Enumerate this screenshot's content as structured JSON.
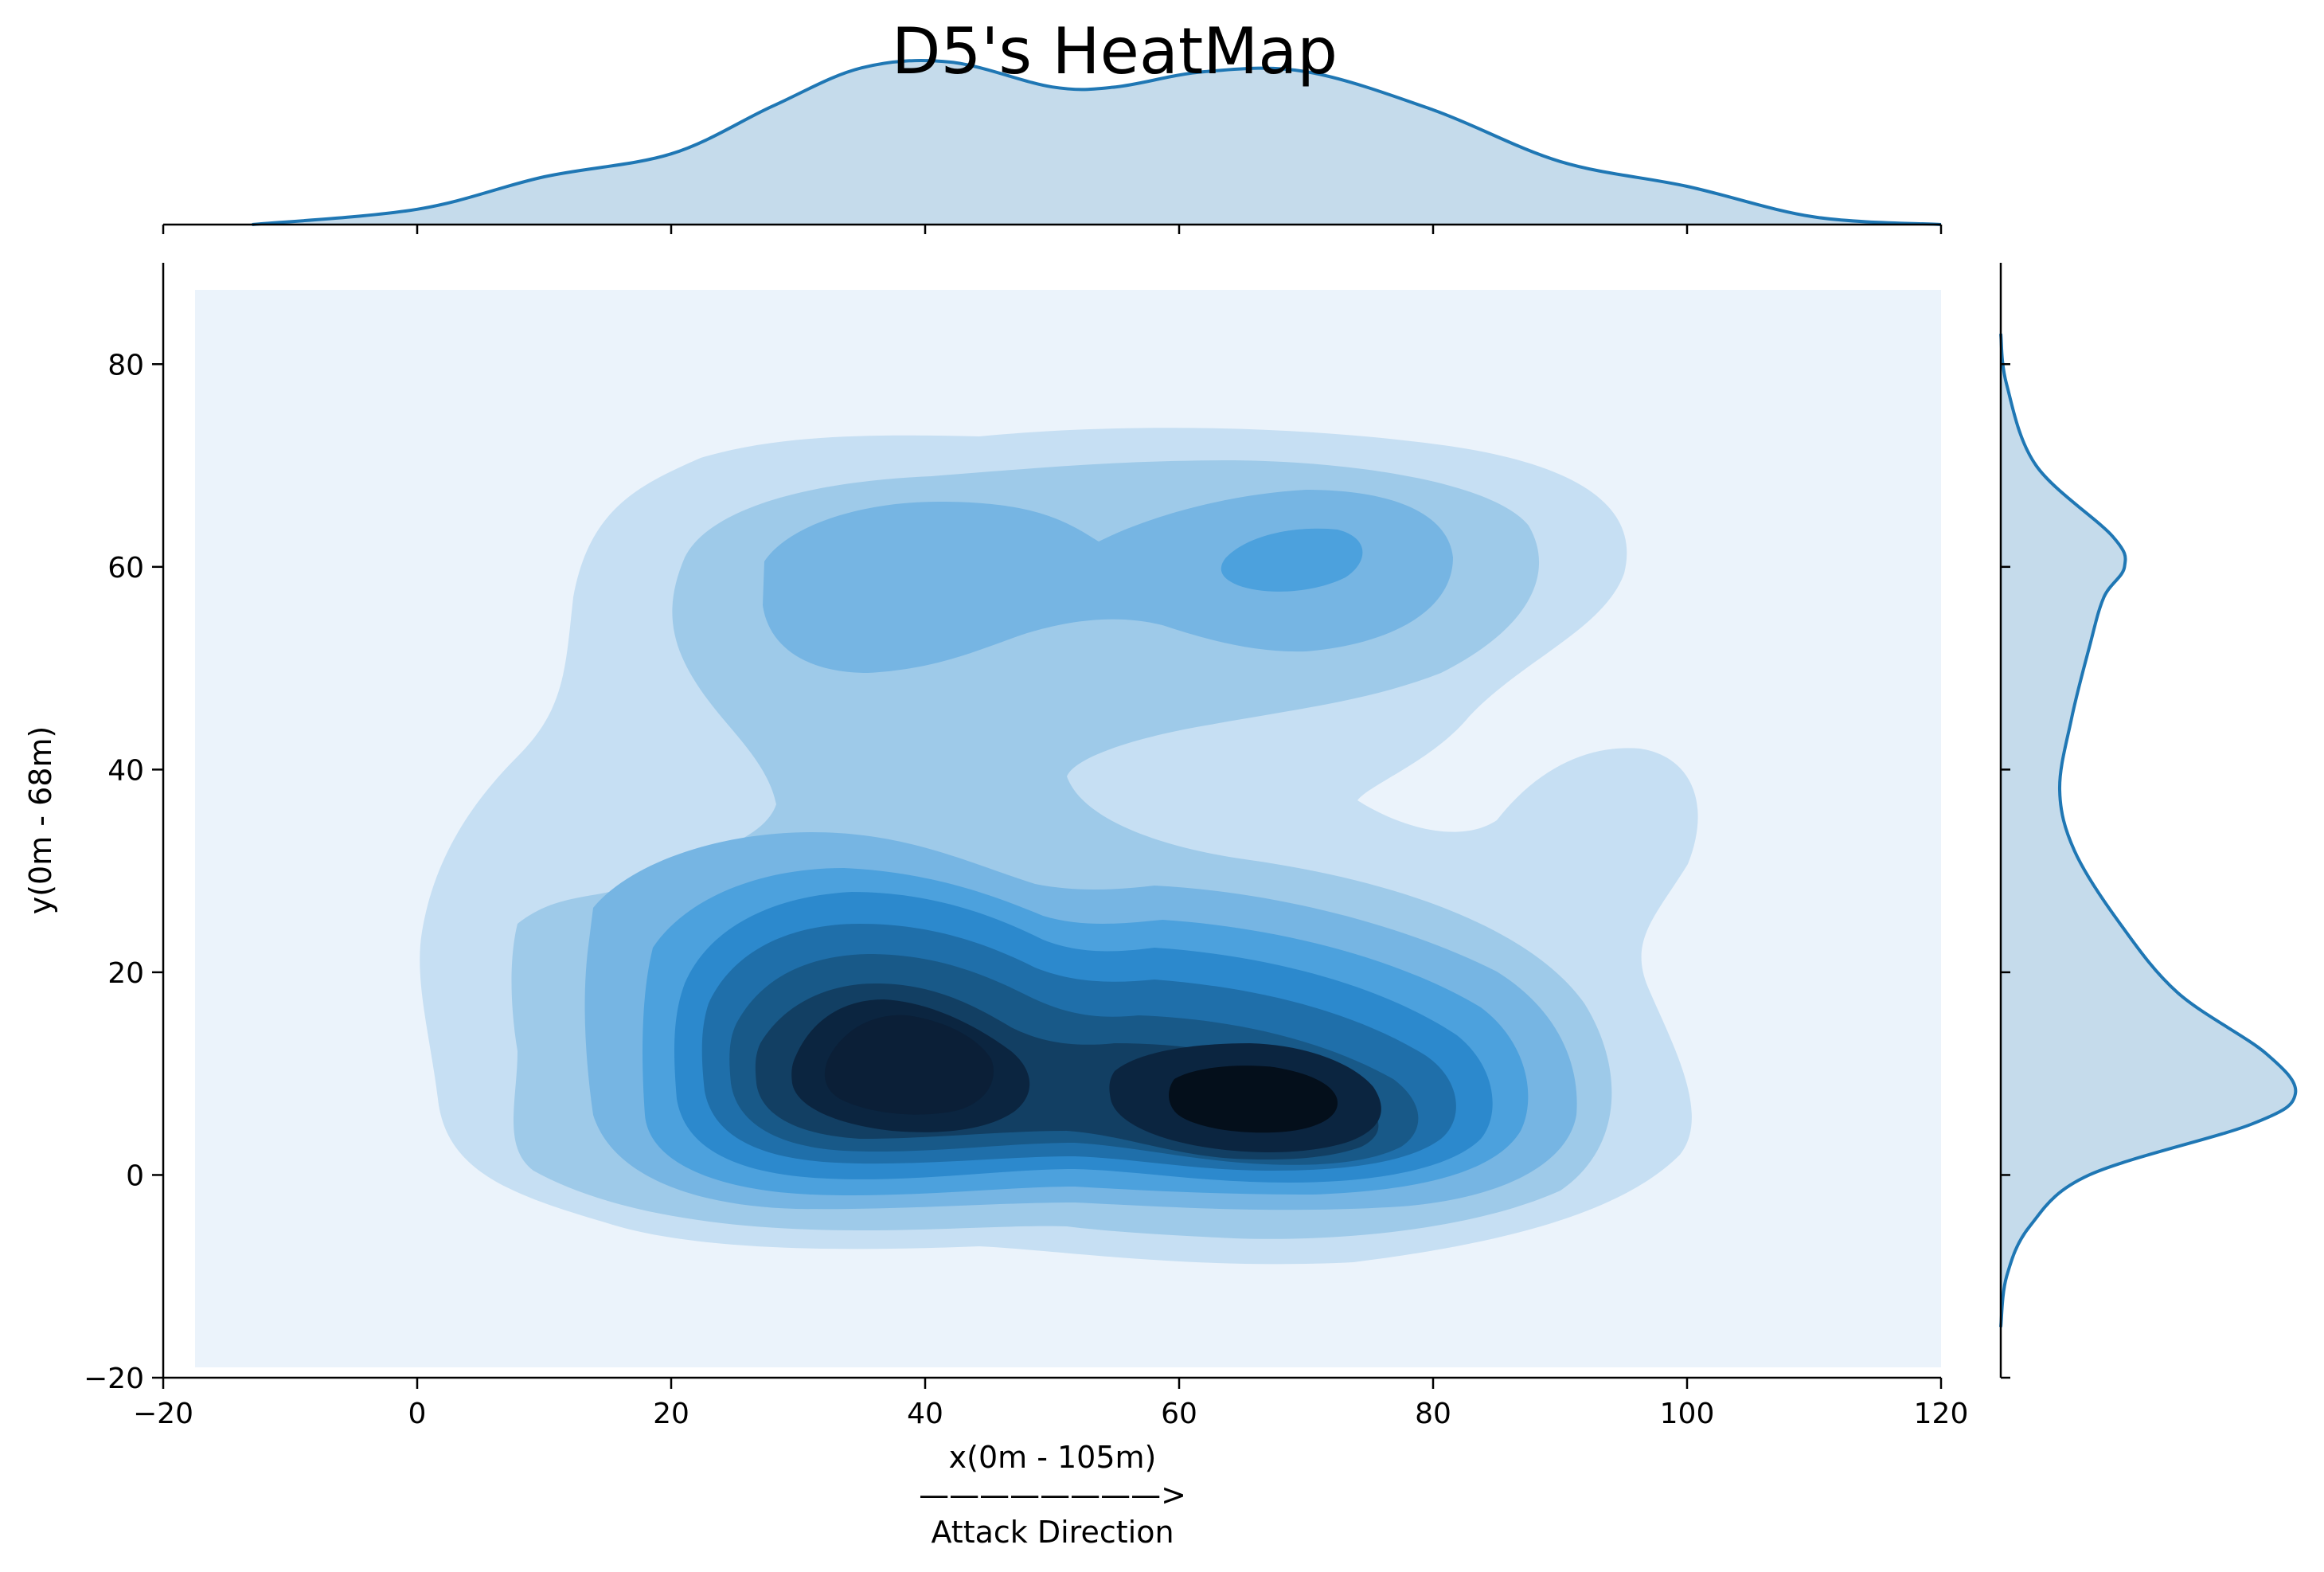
{
  "chart_data": {
    "type": "heatmap",
    "subtype": "2d-kde-joint-plot",
    "title": "D5's HeatMap",
    "xlabel": "x(0m - 105m)",
    "xlabel_arrow": "————————>",
    "xlabel_note": "Attack Direction",
    "ylabel": "y(0m - 68m)",
    "xlim": [
      -20,
      120
    ],
    "ylim": [
      -20,
      90
    ],
    "x_ticks": [
      -20,
      0,
      20,
      40,
      60,
      80,
      100,
      120
    ],
    "y_ticks": [
      -20,
      0,
      20,
      40,
      60,
      80
    ],
    "x_tick_labels": [
      "−20",
      "0",
      "20",
      "40",
      "60",
      "80",
      "100",
      "120"
    ],
    "y_tick_labels": [
      "−20",
      "0",
      "20",
      "40",
      "60",
      "80"
    ],
    "grid": false,
    "colormap": [
      "#ebf3fb",
      "#c6dff3",
      "#9ecae9",
      "#76b5e3",
      "#4ca1dd",
      "#2c89cd",
      "#1f6faa",
      "#185988",
      "#123f63",
      "#0b2540",
      "#040f1b"
    ],
    "density_peaks": [
      {
        "x": 37,
        "y": 11
      },
      {
        "x": 67,
        "y": 8
      },
      {
        "x": 68,
        "y": 60
      }
    ],
    "marginal_x": {
      "x": [
        -13,
        0,
        10,
        20,
        28,
        35,
        42,
        50,
        55,
        62,
        70,
        80,
        90,
        100,
        110,
        120
      ],
      "density": [
        0.0,
        0.08,
        0.25,
        0.37,
        0.62,
        0.82,
        0.85,
        0.72,
        0.72,
        0.8,
        0.8,
        0.6,
        0.33,
        0.2,
        0.04,
        0.0
      ]
    },
    "marginal_y": {
      "y": [
        -15,
        -10,
        -5,
        0,
        5,
        8,
        12,
        18,
        25,
        32,
        38,
        45,
        52,
        57,
        60,
        63,
        70,
        78,
        83
      ],
      "density": [
        0.0,
        0.02,
        0.1,
        0.3,
        0.85,
        1.0,
        0.9,
        0.6,
        0.4,
        0.25,
        0.2,
        0.24,
        0.3,
        0.35,
        0.42,
        0.38,
        0.12,
        0.02,
        0.0
      ]
    }
  },
  "colors": {
    "line": "#1f77b4",
    "fill": "#c5dbeb"
  }
}
